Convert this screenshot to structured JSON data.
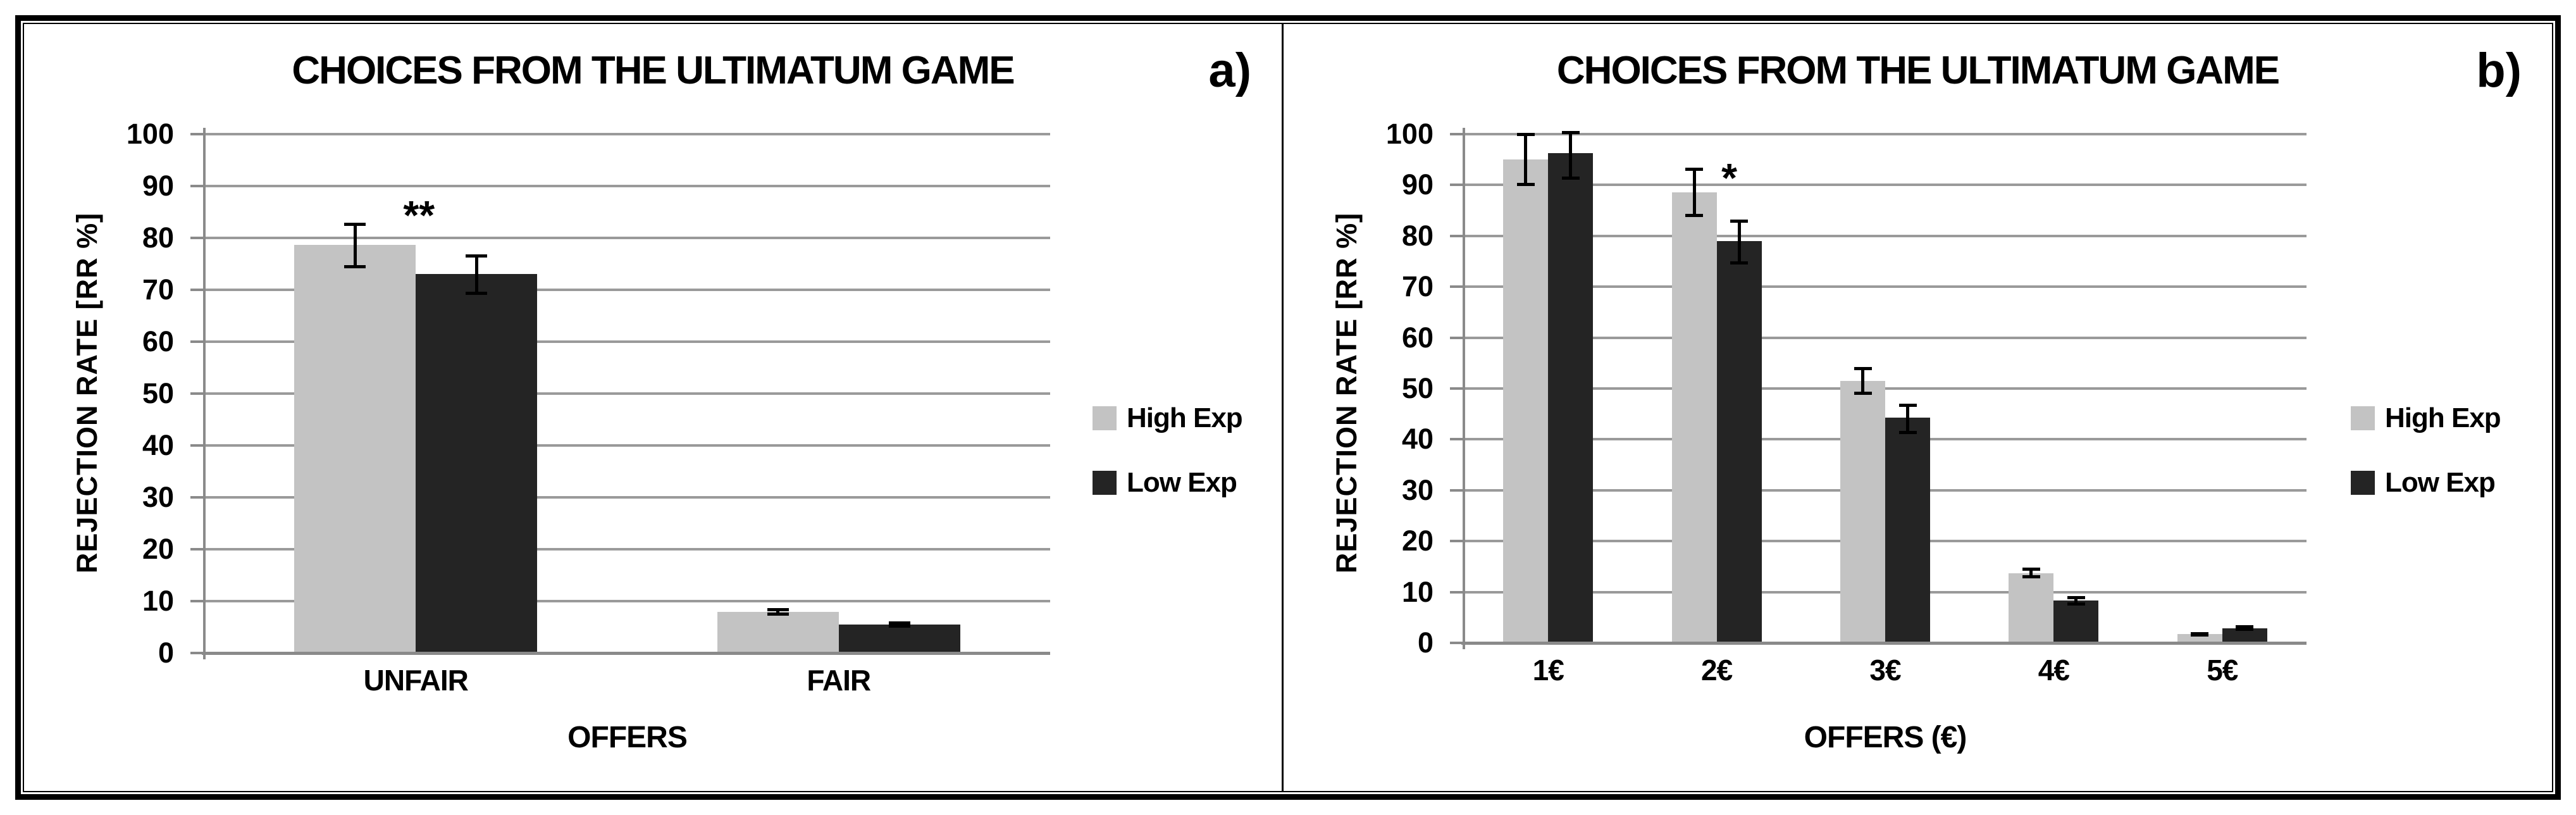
{
  "figure": {
    "background": "#ffffff",
    "frame_color": "#000000",
    "gridline_color": "#9a9a9a",
    "axis_color": "#8a8a8a"
  },
  "chart_data": [
    {
      "panel_label": "a)",
      "type": "bar",
      "title": "CHOICES FROM THE ULTIMATUM GAME",
      "xlabel": "OFFERS",
      "ylabel": "REJECTION RATE [RR %]",
      "ylim": [
        0,
        100
      ],
      "ytick_step": 10,
      "grid": true,
      "legend_position": "right",
      "categories": [
        "UNFAIR",
        "FAIR"
      ],
      "series": [
        {
          "name": "High Exp",
          "color": "#c3c3c3",
          "values": [
            78.7,
            7.9
          ],
          "err_low": [
            74.4,
            7.4
          ],
          "err_high": [
            82.7,
            8.4
          ]
        },
        {
          "name": "Low Exp",
          "color": "#242424",
          "values": [
            73.0,
            5.5
          ],
          "err_low": [
            69.3,
            5.1
          ],
          "err_high": [
            76.6,
            5.9
          ]
        }
      ],
      "annotations": [
        {
          "text": "**",
          "category_index": 0,
          "y": 85.5,
          "x_offset": 5
        }
      ]
    },
    {
      "panel_label": "b)",
      "type": "bar",
      "title": "CHOICES FROM THE ULTIMATUM GAME",
      "xlabel": "OFFERS (€)",
      "ylabel": "REJECTION RATE [RR %]",
      "ylim": [
        0,
        100
      ],
      "ytick_step": 10,
      "grid": true,
      "legend_position": "right",
      "categories": [
        "1€",
        "2€",
        "3€",
        "4€",
        "5€"
      ],
      "series": [
        {
          "name": "High Exp",
          "color": "#c3c3c3",
          "values": [
            95.0,
            88.5,
            51.5,
            13.7,
            1.7
          ],
          "err_low": [
            90.0,
            84.0,
            49.0,
            12.9,
            1.5
          ],
          "err_high": [
            100.0,
            93.2,
            54.0,
            14.5,
            1.9
          ]
        },
        {
          "name": "Low Exp",
          "color": "#242424",
          "values": [
            96.3,
            79.0,
            44.3,
            8.3,
            2.9
          ],
          "err_low": [
            91.3,
            74.6,
            41.3,
            7.6,
            2.6
          ],
          "err_high": [
            100.4,
            82.9,
            46.8,
            9.0,
            3.2
          ]
        }
      ],
      "annotations": [
        {
          "text": "*",
          "category_index": 1,
          "y": 92.5,
          "x_offset": 20
        }
      ]
    }
  ]
}
